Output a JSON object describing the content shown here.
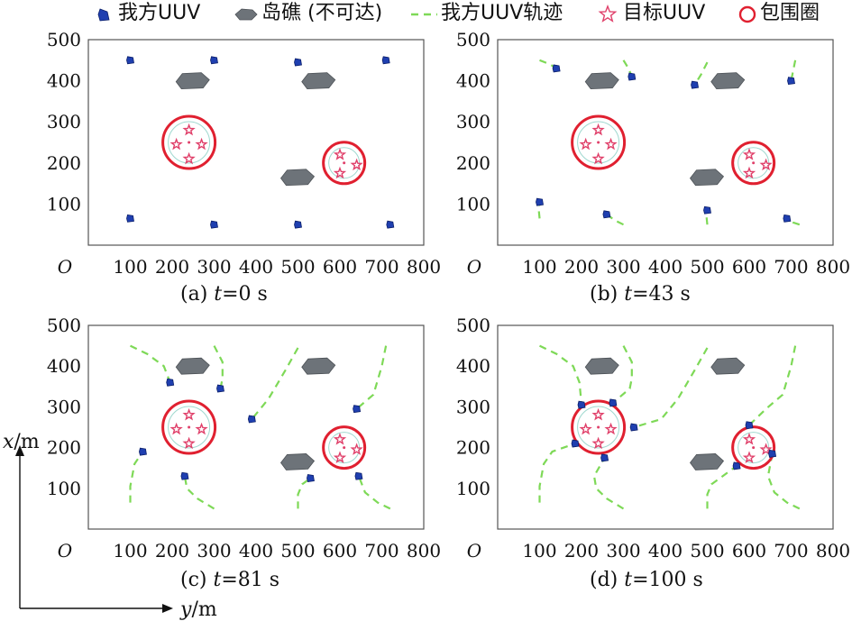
{
  "legend": {
    "uuv_label": "我方UUV",
    "island_label": "岛礁 (不可达)",
    "trajectory_label": "我方UUV轨迹",
    "target_label": "目标UUV",
    "encircle_label": "包围圈"
  },
  "axis": {
    "x_label_italic": "x",
    "x_label_unit": "/m",
    "y_label_italic": "y",
    "y_label_unit": "/m",
    "origin": "O"
  },
  "colors": {
    "uuv": "#1f3fb0",
    "island": "#6d7379",
    "trajectory": "#7ed957",
    "ring": "#e02030",
    "star": "#e0406a"
  },
  "chart_data": [
    {
      "type": "scatter",
      "caption_prefix": "(a) ",
      "caption_var": "t",
      "caption_value": "=0 s",
      "xlim": [
        0,
        800
      ],
      "ylim": [
        0,
        500
      ],
      "xticks": [
        "100",
        "200",
        "300",
        "400",
        "500",
        "600",
        "700",
        "800"
      ],
      "yticks": [
        "100",
        "200",
        "300",
        "400",
        "500"
      ],
      "targets": [
        {
          "center": [
            240,
            250
          ],
          "stars": [
            [
              240,
              280
            ],
            [
              210,
              245
            ],
            [
              270,
              245
            ],
            [
              240,
              210
            ]
          ]
        },
        {
          "center": [
            610,
            200
          ],
          "stars": [
            [
              600,
              220
            ],
            [
              640,
              195
            ],
            [
              600,
              175
            ]
          ]
        }
      ],
      "islands": [
        [
          250,
          400
        ],
        [
          550,
          400
        ],
        [
          500,
          165
        ]
      ],
      "uuvs": [
        [
          100,
          450
        ],
        [
          300,
          450
        ],
        [
          500,
          445
        ],
        [
          710,
          450
        ],
        [
          100,
          65
        ],
        [
          300,
          50
        ],
        [
          500,
          50
        ],
        [
          720,
          50
        ]
      ],
      "trajectories": []
    },
    {
      "type": "scatter",
      "caption_prefix": "(b) ",
      "caption_var": "t",
      "caption_value": "=43 s",
      "xlim": [
        0,
        800
      ],
      "ylim": [
        0,
        500
      ],
      "xticks": [
        "100",
        "200",
        "300",
        "400",
        "500",
        "600",
        "700",
        "800"
      ],
      "yticks": [
        "100",
        "200",
        "300",
        "400",
        "500"
      ],
      "targets": [
        {
          "center": [
            240,
            250
          ],
          "stars": [
            [
              240,
              280
            ],
            [
              210,
              245
            ],
            [
              270,
              245
            ],
            [
              240,
              210
            ]
          ]
        },
        {
          "center": [
            610,
            200
          ],
          "stars": [
            [
              600,
              220
            ],
            [
              640,
              195
            ],
            [
              600,
              175
            ]
          ]
        }
      ],
      "islands": [
        [
          250,
          400
        ],
        [
          550,
          400
        ],
        [
          500,
          165
        ]
      ],
      "uuvs": [
        [
          140,
          430
        ],
        [
          320,
          410
        ],
        [
          470,
          390
        ],
        [
          700,
          400
        ],
        [
          100,
          105
        ],
        [
          260,
          75
        ],
        [
          500,
          85
        ],
        [
          690,
          65
        ]
      ],
      "trajectories": [
        [
          [
            100,
            450
          ],
          [
            125,
            440
          ],
          [
            140,
            430
          ]
        ],
        [
          [
            300,
            450
          ],
          [
            312,
            430
          ],
          [
            320,
            410
          ]
        ],
        [
          [
            500,
            445
          ],
          [
            485,
            415
          ],
          [
            470,
            390
          ]
        ],
        [
          [
            710,
            450
          ],
          [
            705,
            425
          ],
          [
            700,
            400
          ]
        ],
        [
          [
            100,
            65
          ],
          [
            98,
            85
          ],
          [
            100,
            105
          ]
        ],
        [
          [
            300,
            50
          ],
          [
            280,
            60
          ],
          [
            260,
            75
          ]
        ],
        [
          [
            500,
            50
          ],
          [
            498,
            70
          ],
          [
            500,
            85
          ]
        ],
        [
          [
            720,
            50
          ],
          [
            705,
            55
          ],
          [
            690,
            65
          ]
        ]
      ]
    },
    {
      "type": "scatter",
      "caption_prefix": "(c) ",
      "caption_var": "t",
      "caption_value": "=81 s",
      "xlim": [
        0,
        800
      ],
      "ylim": [
        0,
        500
      ],
      "xticks": [
        "100",
        "200",
        "300",
        "400",
        "500",
        "600",
        "700",
        "800"
      ],
      "yticks": [
        "100",
        "200",
        "300",
        "400",
        "500"
      ],
      "targets": [
        {
          "center": [
            240,
            250
          ],
          "stars": [
            [
              240,
              280
            ],
            [
              210,
              245
            ],
            [
              270,
              245
            ],
            [
              240,
              210
            ]
          ]
        },
        {
          "center": [
            610,
            200
          ],
          "stars": [
            [
              600,
              220
            ],
            [
              640,
              195
            ],
            [
              600,
              175
            ]
          ]
        }
      ],
      "islands": [
        [
          250,
          400
        ],
        [
          550,
          400
        ],
        [
          500,
          165
        ]
      ],
      "uuvs": [
        [
          195,
          360
        ],
        [
          315,
          345
        ],
        [
          390,
          270
        ],
        [
          640,
          295
        ],
        [
          130,
          190
        ],
        [
          230,
          130
        ],
        [
          530,
          125
        ],
        [
          645,
          130
        ]
      ],
      "trajectories": [
        [
          [
            100,
            450
          ],
          [
            140,
            430
          ],
          [
            180,
            400
          ],
          [
            195,
            360
          ]
        ],
        [
          [
            300,
            450
          ],
          [
            320,
            410
          ],
          [
            320,
            370
          ],
          [
            315,
            345
          ]
        ],
        [
          [
            500,
            445
          ],
          [
            470,
            390
          ],
          [
            430,
            320
          ],
          [
            390,
            270
          ]
        ],
        [
          [
            710,
            450
          ],
          [
            700,
            400
          ],
          [
            680,
            330
          ],
          [
            640,
            295
          ]
        ],
        [
          [
            100,
            65
          ],
          [
            100,
            105
          ],
          [
            110,
            160
          ],
          [
            130,
            190
          ]
        ],
        [
          [
            300,
            50
          ],
          [
            260,
            75
          ],
          [
            235,
            100
          ],
          [
            230,
            130
          ]
        ],
        [
          [
            500,
            50
          ],
          [
            500,
            85
          ],
          [
            510,
            110
          ],
          [
            530,
            125
          ]
        ],
        [
          [
            720,
            50
          ],
          [
            690,
            65
          ],
          [
            660,
            90
          ],
          [
            645,
            130
          ]
        ]
      ]
    },
    {
      "type": "scatter",
      "caption_prefix": "(d) ",
      "caption_var": "t",
      "caption_value": "=100 s",
      "xlim": [
        0,
        800
      ],
      "ylim": [
        0,
        500
      ],
      "xticks": [
        "100",
        "200",
        "300",
        "400",
        "500",
        "600",
        "700",
        "800"
      ],
      "yticks": [
        "100",
        "200",
        "300",
        "400",
        "500"
      ],
      "targets": [
        {
          "center": [
            240,
            250
          ],
          "stars": [
            [
              240,
              280
            ],
            [
              210,
              245
            ],
            [
              270,
              245
            ],
            [
              240,
              210
            ]
          ]
        },
        {
          "center": [
            610,
            200
          ],
          "stars": [
            [
              600,
              220
            ],
            [
              640,
              195
            ],
            [
              600,
              175
            ]
          ]
        }
      ],
      "islands": [
        [
          250,
          400
        ],
        [
          550,
          400
        ],
        [
          500,
          165
        ]
      ],
      "uuvs": [
        [
          200,
          305
        ],
        [
          275,
          310
        ],
        [
          325,
          250
        ],
        [
          600,
          255
        ],
        [
          185,
          210
        ],
        [
          255,
          175
        ],
        [
          570,
          155
        ],
        [
          655,
          185
        ]
      ],
      "trajectories": [
        [
          [
            100,
            450
          ],
          [
            140,
            430
          ],
          [
            180,
            400
          ],
          [
            195,
            360
          ],
          [
            200,
            305
          ]
        ],
        [
          [
            300,
            450
          ],
          [
            320,
            410
          ],
          [
            320,
            370
          ],
          [
            315,
            345
          ],
          [
            275,
            310
          ]
        ],
        [
          [
            500,
            445
          ],
          [
            470,
            390
          ],
          [
            430,
            320
          ],
          [
            390,
            270
          ],
          [
            325,
            250
          ]
        ],
        [
          [
            710,
            450
          ],
          [
            700,
            400
          ],
          [
            680,
            330
          ],
          [
            640,
            295
          ],
          [
            600,
            255
          ]
        ],
        [
          [
            100,
            65
          ],
          [
            100,
            105
          ],
          [
            110,
            160
          ],
          [
            130,
            190
          ],
          [
            185,
            210
          ]
        ],
        [
          [
            300,
            50
          ],
          [
            260,
            75
          ],
          [
            235,
            100
          ],
          [
            230,
            130
          ],
          [
            255,
            175
          ]
        ],
        [
          [
            500,
            50
          ],
          [
            500,
            85
          ],
          [
            510,
            110
          ],
          [
            530,
            125
          ],
          [
            570,
            155
          ]
        ],
        [
          [
            720,
            50
          ],
          [
            690,
            65
          ],
          [
            660,
            90
          ],
          [
            645,
            130
          ],
          [
            655,
            185
          ]
        ]
      ]
    }
  ]
}
